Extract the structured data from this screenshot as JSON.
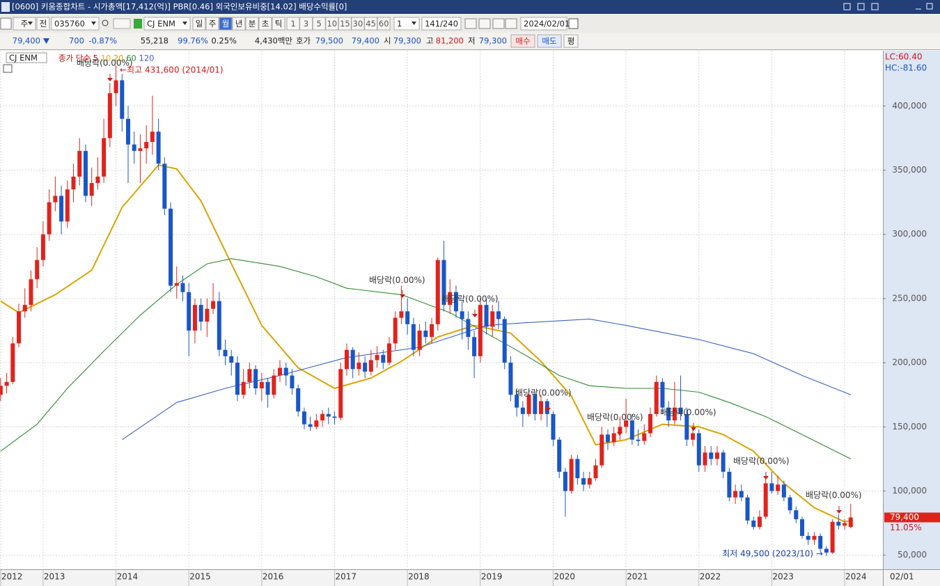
{
  "window": {
    "title": "[0600] 키움종합차트 - 시가총액[17,412(억)] PBR[0.46] 외국인보유비중[14.02] 배당수익률[0]"
  },
  "toolbar": {
    "market": "주",
    "scope": "전",
    "code": "035760",
    "name": "CJ ENM",
    "periods": [
      "일",
      "주",
      "월",
      "년",
      "분",
      "초",
      "틱"
    ],
    "intervals": [
      "1",
      "3",
      "5",
      "10",
      "15",
      "30",
      "45",
      "60"
    ],
    "count": "1",
    "range": "141/240",
    "date": "2024/02/01"
  },
  "quote": {
    "price": "79,400",
    "change": "700",
    "change_pct": "-0.87%",
    "volume": "55,218",
    "vol_ratio": "99.76%",
    "turnover": "0.25%",
    "amount": "4,430백만",
    "ask_label": "호가",
    "ask": "79,500",
    "bid": "79,400",
    "open_label": "시",
    "open": "79,300",
    "high_label": "고",
    "high": "81,200",
    "low_label": "저",
    "low": "79,300",
    "buy": "매수",
    "sell": "매도",
    "avg": "평"
  },
  "chart_data": {
    "type": "candlestick",
    "title": "CJ ENM",
    "legend_prefix": "종가 단순",
    "up_color": "#e0231c",
    "down_color": "#1a56c8",
    "grid": true,
    "candles": [
      [
        175000,
        188000,
        170000,
        182000
      ],
      [
        182000,
        192000,
        176000,
        185000
      ],
      [
        185000,
        220000,
        183000,
        215000
      ],
      [
        215000,
        246000,
        212000,
        240000
      ],
      [
        240000,
        258000,
        235000,
        245000
      ],
      [
        245000,
        272000,
        240000,
        265000
      ],
      [
        265000,
        290000,
        258000,
        280000
      ],
      [
        280000,
        310000,
        275000,
        300000
      ],
      [
        300000,
        335000,
        295000,
        325000
      ],
      [
        325000,
        345000,
        318000,
        330000
      ],
      [
        330000,
        338000,
        300000,
        310000
      ],
      [
        310000,
        342000,
        305000,
        335000
      ],
      [
        335000,
        355000,
        325000,
        345000
      ],
      [
        345000,
        375000,
        338000,
        365000
      ],
      [
        365000,
        370000,
        325000,
        330000
      ],
      [
        330000,
        352000,
        322000,
        340000
      ],
      [
        340000,
        360000,
        335000,
        345000
      ],
      [
        345000,
        390000,
        340000,
        375000
      ],
      [
        375000,
        418000,
        368000,
        410000
      ],
      [
        410000,
        431600,
        400000,
        420000
      ],
      [
        420000,
        425000,
        380000,
        390000
      ],
      [
        390000,
        400000,
        340000,
        370000
      ],
      [
        370000,
        380000,
        355000,
        365000
      ],
      [
        365000,
        378000,
        340000,
        367000
      ],
      [
        367000,
        385000,
        355000,
        372000
      ],
      [
        372000,
        408000,
        362000,
        380000
      ],
      [
        380000,
        390000,
        350000,
        355000
      ],
      [
        355000,
        360000,
        315000,
        320000
      ],
      [
        320000,
        325000,
        255000,
        260000
      ],
      [
        260000,
        275000,
        250000,
        262000
      ],
      [
        262000,
        268000,
        248000,
        255000
      ],
      [
        255000,
        262000,
        205000,
        225000
      ],
      [
        225000,
        250000,
        215000,
        245000
      ],
      [
        245000,
        250000,
        225000,
        232000
      ],
      [
        232000,
        250000,
        220000,
        242000
      ],
      [
        242000,
        262000,
        238000,
        248000
      ],
      [
        248000,
        255000,
        205000,
        210000
      ],
      [
        210000,
        218000,
        198000,
        205000
      ],
      [
        205000,
        210000,
        190000,
        200000
      ],
      [
        200000,
        205000,
        170000,
        175000
      ],
      [
        175000,
        195000,
        172000,
        185000
      ],
      [
        185000,
        200000,
        180000,
        195000
      ],
      [
        195000,
        198000,
        175000,
        180000
      ],
      [
        180000,
        192000,
        170000,
        185000
      ],
      [
        185000,
        188000,
        165000,
        175000
      ],
      [
        175000,
        195000,
        172000,
        190000
      ],
      [
        190000,
        202000,
        185000,
        196000
      ],
      [
        196000,
        200000,
        182000,
        190000
      ],
      [
        190000,
        195000,
        175000,
        180000
      ],
      [
        180000,
        183000,
        158000,
        162000
      ],
      [
        162000,
        165000,
        148000,
        152000
      ],
      [
        152000,
        158000,
        147000,
        150000
      ],
      [
        150000,
        160000,
        148000,
        155000
      ],
      [
        155000,
        163000,
        150000,
        160000
      ],
      [
        160000,
        165000,
        152000,
        158000
      ],
      [
        158000,
        162000,
        152000,
        157000
      ],
      [
        157000,
        200000,
        155000,
        195000
      ],
      [
        195000,
        215000,
        190000,
        210000
      ],
      [
        210000,
        212000,
        188000,
        195000
      ],
      [
        195000,
        208000,
        190000,
        200000
      ],
      [
        200000,
        205000,
        188000,
        193000
      ],
      [
        193000,
        210000,
        190000,
        202000
      ],
      [
        202000,
        213000,
        196000,
        206000
      ],
      [
        206000,
        210000,
        195000,
        200000
      ],
      [
        200000,
        220000,
        198000,
        215000
      ],
      [
        215000,
        240000,
        210000,
        235000
      ],
      [
        235000,
        260000,
        230000,
        240000
      ],
      [
        240000,
        250000,
        222000,
        230000
      ],
      [
        230000,
        235000,
        205000,
        210000
      ],
      [
        210000,
        230000,
        205000,
        225000
      ],
      [
        225000,
        232000,
        215000,
        220000
      ],
      [
        220000,
        235000,
        215000,
        230000
      ],
      [
        230000,
        282000,
        225000,
        280000
      ],
      [
        280000,
        295000,
        240000,
        245000
      ],
      [
        245000,
        265000,
        238000,
        255000
      ],
      [
        255000,
        260000,
        235000,
        240000
      ],
      [
        240000,
        248000,
        218000,
        234000
      ],
      [
        234000,
        240000,
        210000,
        220000
      ],
      [
        220000,
        225000,
        188000,
        205000
      ],
      [
        205000,
        250000,
        200000,
        245000
      ],
      [
        245000,
        250000,
        222000,
        228000
      ],
      [
        228000,
        245000,
        220000,
        240000
      ],
      [
        240000,
        248000,
        226000,
        234000
      ],
      [
        234000,
        236000,
        195000,
        200000
      ],
      [
        200000,
        205000,
        170000,
        175000
      ],
      [
        175000,
        180000,
        158000,
        165000
      ],
      [
        165000,
        170000,
        150000,
        160000
      ],
      [
        160000,
        180000,
        158000,
        175000
      ],
      [
        175000,
        178000,
        155000,
        160000
      ],
      [
        160000,
        175000,
        155000,
        170000
      ],
      [
        170000,
        172000,
        150000,
        160000
      ],
      [
        160000,
        162000,
        135000,
        140000
      ],
      [
        140000,
        142000,
        110000,
        115000
      ],
      [
        115000,
        118000,
        80000,
        100000
      ],
      [
        100000,
        128000,
        98000,
        125000
      ],
      [
        125000,
        128000,
        105000,
        110000
      ],
      [
        110000,
        115000,
        100000,
        105000
      ],
      [
        105000,
        115000,
        102000,
        110000
      ],
      [
        110000,
        125000,
        108000,
        120000
      ],
      [
        120000,
        150000,
        118000,
        144000
      ],
      [
        144000,
        148000,
        132000,
        138000
      ],
      [
        138000,
        150000,
        135000,
        145000
      ],
      [
        145000,
        158000,
        140000,
        150000
      ],
      [
        150000,
        172000,
        145000,
        155000
      ],
      [
        155000,
        160000,
        136000,
        140000
      ],
      [
        140000,
        148000,
        135000,
        139000
      ],
      [
        139000,
        152000,
        136000,
        145000
      ],
      [
        145000,
        165000,
        142000,
        160000
      ],
      [
        160000,
        190000,
        158000,
        185000
      ],
      [
        185000,
        188000,
        160000,
        165000
      ],
      [
        165000,
        170000,
        150000,
        155000
      ],
      [
        155000,
        185000,
        152000,
        165000
      ],
      [
        165000,
        190000,
        155000,
        160000
      ],
      [
        160000,
        165000,
        135000,
        140000
      ],
      [
        140000,
        150000,
        135000,
        145000
      ],
      [
        145000,
        148000,
        115000,
        120000
      ],
      [
        120000,
        135000,
        115000,
        130000
      ],
      [
        130000,
        135000,
        120000,
        125000
      ],
      [
        125000,
        135000,
        120000,
        130000
      ],
      [
        130000,
        132000,
        110000,
        115000
      ],
      [
        115000,
        118000,
        92000,
        95000
      ],
      [
        95000,
        105000,
        90000,
        100000
      ],
      [
        100000,
        105000,
        92000,
        95000
      ],
      [
        95000,
        97000,
        74000,
        77000
      ],
      [
        77000,
        80000,
        70000,
        72000
      ],
      [
        72000,
        85000,
        70000,
        80000
      ],
      [
        80000,
        110000,
        78000,
        106000
      ],
      [
        106000,
        115000,
        98000,
        100000
      ],
      [
        100000,
        112000,
        97000,
        105000
      ],
      [
        105000,
        108000,
        92000,
        95000
      ],
      [
        95000,
        97000,
        82000,
        85000
      ],
      [
        85000,
        88000,
        75000,
        78000
      ],
      [
        78000,
        80000,
        63000,
        65000
      ],
      [
        65000,
        68000,
        58000,
        62000
      ],
      [
        62000,
        68000,
        58000,
        65000
      ],
      [
        65000,
        67000,
        52000,
        55000
      ],
      [
        55000,
        57000,
        49500,
        52000
      ],
      [
        52000,
        78000,
        51000,
        76000
      ],
      [
        76000,
        82000,
        70000,
        73000
      ],
      [
        73000,
        78000,
        70000,
        75000
      ],
      [
        72000,
        90000,
        71000,
        79400
      ]
    ],
    "series": [
      {
        "name": "5",
        "color": "#d40000"
      },
      {
        "name": "10",
        "color": "#f5a623"
      },
      {
        "name": "20",
        "color": "#d9a400",
        "x": [
          0,
          3,
          9,
          15,
          20,
          26,
          29,
          33,
          38,
          43,
          49,
          55,
          61,
          66,
          72,
          78,
          84,
          89,
          94,
          98,
          103,
          109,
          115,
          119,
          124,
          129,
          134,
          139,
          140
        ],
        "values": [
          248000,
          239000,
          253000,
          272000,
          321000,
          354000,
          351000,
          326000,
          277000,
          229000,
          196000,
          180000,
          188000,
          201000,
          220000,
          229000,
          223000,
          201000,
          174000,
          136000,
          140000,
          152000,
          150000,
          144000,
          131000,
          106000,
          87000,
          76000,
          77000
        ]
      },
      {
        "name": "60",
        "color": "#2e8b2e",
        "x": [
          0,
          6,
          11,
          17,
          23,
          29,
          34,
          38,
          46,
          52,
          57,
          66,
          74,
          80,
          86,
          92,
          97,
          103,
          109,
          115,
          120,
          126,
          132,
          140
        ],
        "values": [
          131000,
          152000,
          180000,
          209000,
          237000,
          261000,
          277000,
          281000,
          275000,
          267000,
          258000,
          253000,
          239000,
          223000,
          207000,
          190000,
          182000,
          180000,
          180000,
          177000,
          169000,
          158000,
          144000,
          125000
        ]
      },
      {
        "name": "120",
        "color": "#3a64c4",
        "x": [
          20,
          29,
          37,
          46,
          57,
          69,
          80,
          86,
          97,
          103,
          115,
          124,
          132,
          140
        ],
        "values": [
          140000,
          169000,
          180000,
          190000,
          204000,
          212000,
          229000,
          231000,
          234000,
          229000,
          218000,
          207000,
          190000,
          175000
        ]
      }
    ],
    "ylim": [
      39000,
      443000
    ],
    "yticks": [
      {
        "value": 50000,
        "label": "50,000"
      },
      {
        "value": 100000,
        "label": "100,000"
      },
      {
        "value": 150000,
        "label": "150,000"
      },
      {
        "value": 200000,
        "label": "200,000"
      },
      {
        "value": 250000,
        "label": "250,000"
      },
      {
        "value": 300000,
        "label": "300,000"
      },
      {
        "value": 350000,
        "label": "350,000"
      },
      {
        "value": 400000,
        "label": "400,000"
      }
    ],
    "xlim": [
      -0.1,
      145.3
    ],
    "xticks": [
      {
        "value": 0,
        "label": "2012"
      },
      {
        "value": 7,
        "label": "2013"
      },
      {
        "value": 19,
        "label": "2014"
      },
      {
        "value": 31,
        "label": "2015"
      },
      {
        "value": 43,
        "label": "2016"
      },
      {
        "value": 55,
        "label": "2017"
      },
      {
        "value": 67,
        "label": "2018"
      },
      {
        "value": 79,
        "label": "2019"
      },
      {
        "value": 91,
        "label": "2020"
      },
      {
        "value": 103,
        "label": "2021"
      },
      {
        "value": 115,
        "label": "2022"
      },
      {
        "value": 127,
        "label": "2023"
      },
      {
        "value": 139,
        "label": "2024"
      }
    ],
    "x_end_label": "02/01",
    "high_note": "←최고 431,600 (2014/01)",
    "low_note": "최저 49,500 (2023/10) →",
    "dividend_notes": [
      "배당락(0.00%)",
      "배당락(0.00%)",
      "배당락(0.00%)",
      "배당락(0.00%)",
      "배당락(0.00%)",
      "배당락(0.00%)",
      "배당락(0.00%)",
      "배당락(0.00%)"
    ],
    "lc": "LC:60.40",
    "hc": "HC:-81.60",
    "price_pct": "11.05%"
  }
}
